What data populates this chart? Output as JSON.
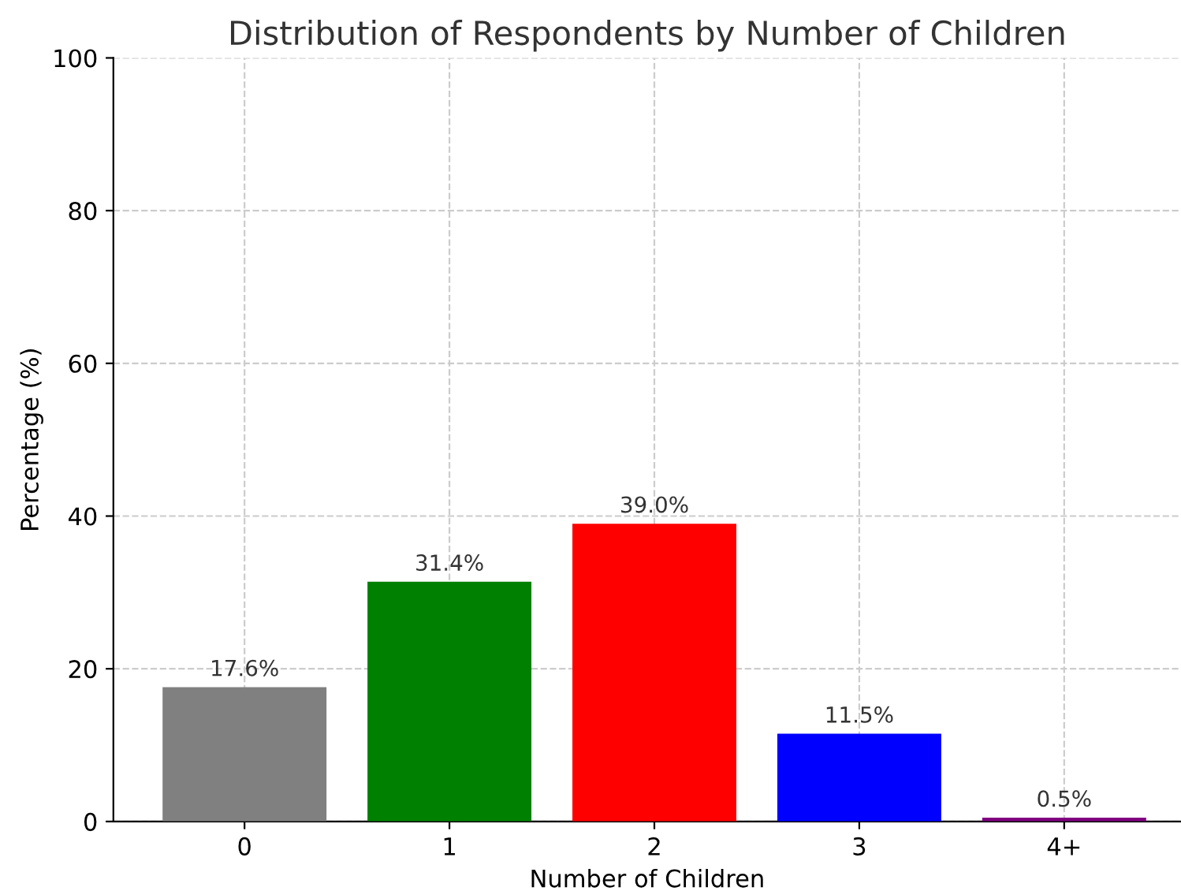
{
  "chart_data": {
    "type": "bar",
    "title": "Distribution of Respondents by Number of Children",
    "xlabel": "Number of Children",
    "ylabel": "Percentage (%)",
    "categories": [
      "0",
      "1",
      "2",
      "3",
      "4+"
    ],
    "values": [
      17.6,
      31.4,
      39.0,
      11.5,
      0.5
    ],
    "colors": [
      "#808080",
      "#008000",
      "#ff0000",
      "#0000ff",
      "#800080"
    ],
    "value_labels": [
      "17.6%",
      "31.4%",
      "39.0%",
      "11.5%",
      "0.5%"
    ],
    "ylim": [
      0,
      100
    ],
    "yticks": [
      0,
      20,
      40,
      60,
      80,
      100
    ],
    "grid": true
  }
}
